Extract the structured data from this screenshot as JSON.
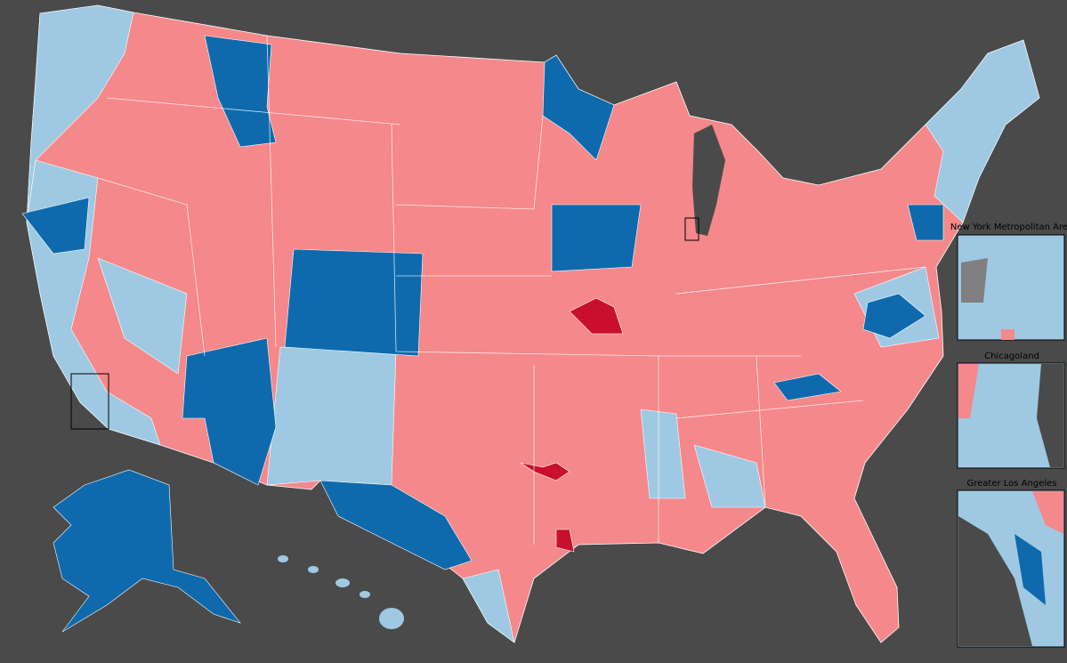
{
  "insets": [
    {
      "title": "New York Metropolitan Area"
    },
    {
      "title": "Chicagoland"
    },
    {
      "title": "Greater Los Angeles"
    }
  ]
}
